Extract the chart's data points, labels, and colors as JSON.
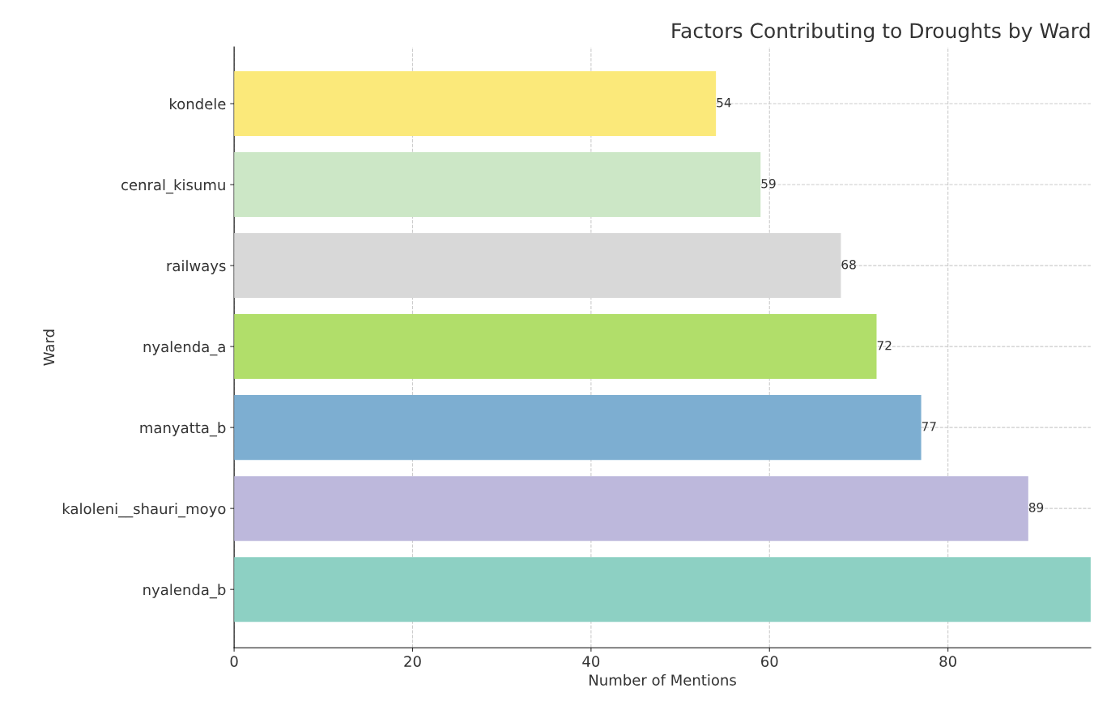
{
  "chart_data": {
    "type": "bar",
    "orientation": "horizontal",
    "title": "Factors Contributing to Droughts by Ward",
    "xlabel": "Number of Mentions",
    "ylabel": "Ward",
    "categories": [
      "kondele",
      "cenral_kisumu",
      "railways",
      "nyalenda_a",
      "manyatta_b",
      "kaloleni__shauri_moyo",
      "nyalenda_b"
    ],
    "values": [
      54,
      59,
      68,
      72,
      77,
      89,
      96
    ],
    "value_labels": [
      "54",
      "59",
      "68",
      "72",
      "77",
      "89",
      null
    ],
    "colors": [
      "#fbe97a",
      "#cce7c6",
      "#d8d8d8",
      "#b1de6a",
      "#7daed1",
      "#bdb8dc",
      "#8dd0c3"
    ],
    "xlim": [
      0,
      96
    ],
    "xticks": [
      0,
      20,
      40,
      60,
      80
    ],
    "grid": true
  }
}
